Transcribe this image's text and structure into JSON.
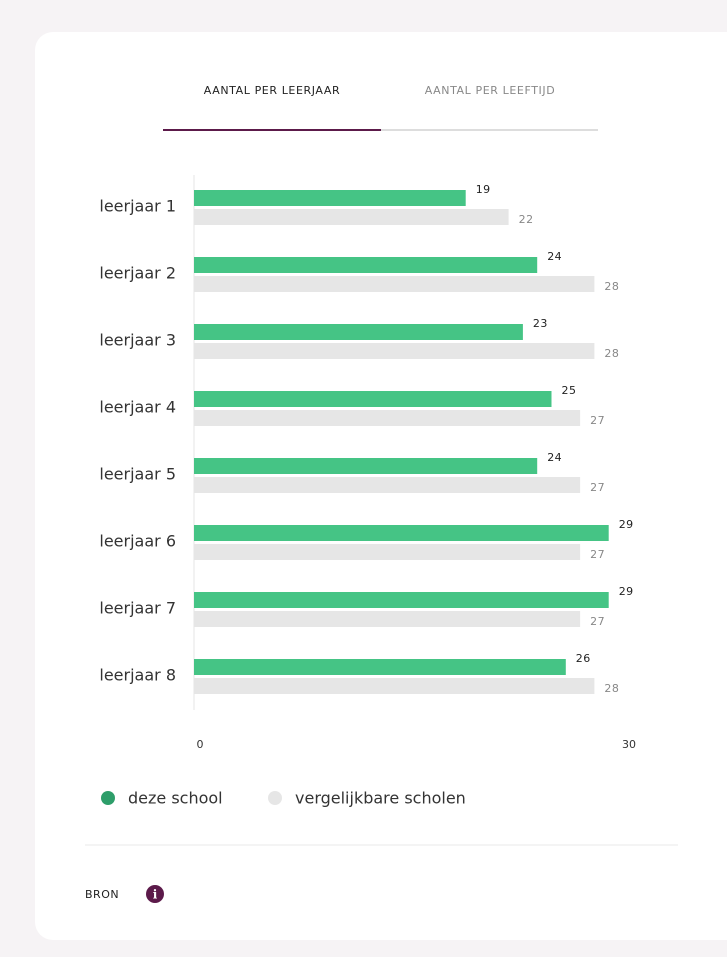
{
  "tabs": [
    "AANTAL PER LEERJAAR",
    "AANTAL PER LEEFTIJD"
  ],
  "chart_data": {
    "type": "bar",
    "orientation": "horizontal",
    "categories": [
      "leerjaar 1",
      "leerjaar 2",
      "leerjaar 3",
      "leerjaar 4",
      "leerjaar 5",
      "leerjaar 6",
      "leerjaar 7",
      "leerjaar 8"
    ],
    "series": [
      {
        "name": "deze school",
        "color": "#45c485",
        "values": [
          19,
          24,
          23,
          25,
          24,
          29,
          29,
          26
        ]
      },
      {
        "name": "vergelijkbare scholen",
        "color": "#e6e6e6",
        "values": [
          22,
          28,
          28,
          27,
          27,
          27,
          27,
          28
        ]
      }
    ],
    "xlim": [
      0,
      30
    ],
    "xticks": [
      0,
      30
    ],
    "legend": "bottom-left"
  },
  "source": "BRON"
}
